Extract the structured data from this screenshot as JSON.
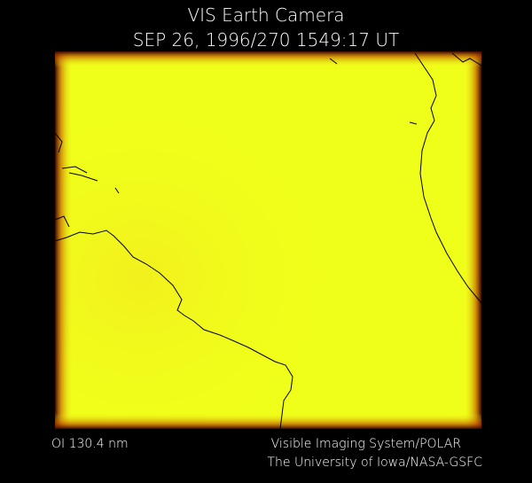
{
  "header": {
    "title": "VIS Earth Camera",
    "subtitle": "SEP 26, 1996/270 1549:17 UT"
  },
  "footer": {
    "left": "OI  130.4 nm",
    "right": [
      "Visible Imaging System/POLAR",
      "The University of Iowa/NASA-GSFC"
    ]
  }
}
